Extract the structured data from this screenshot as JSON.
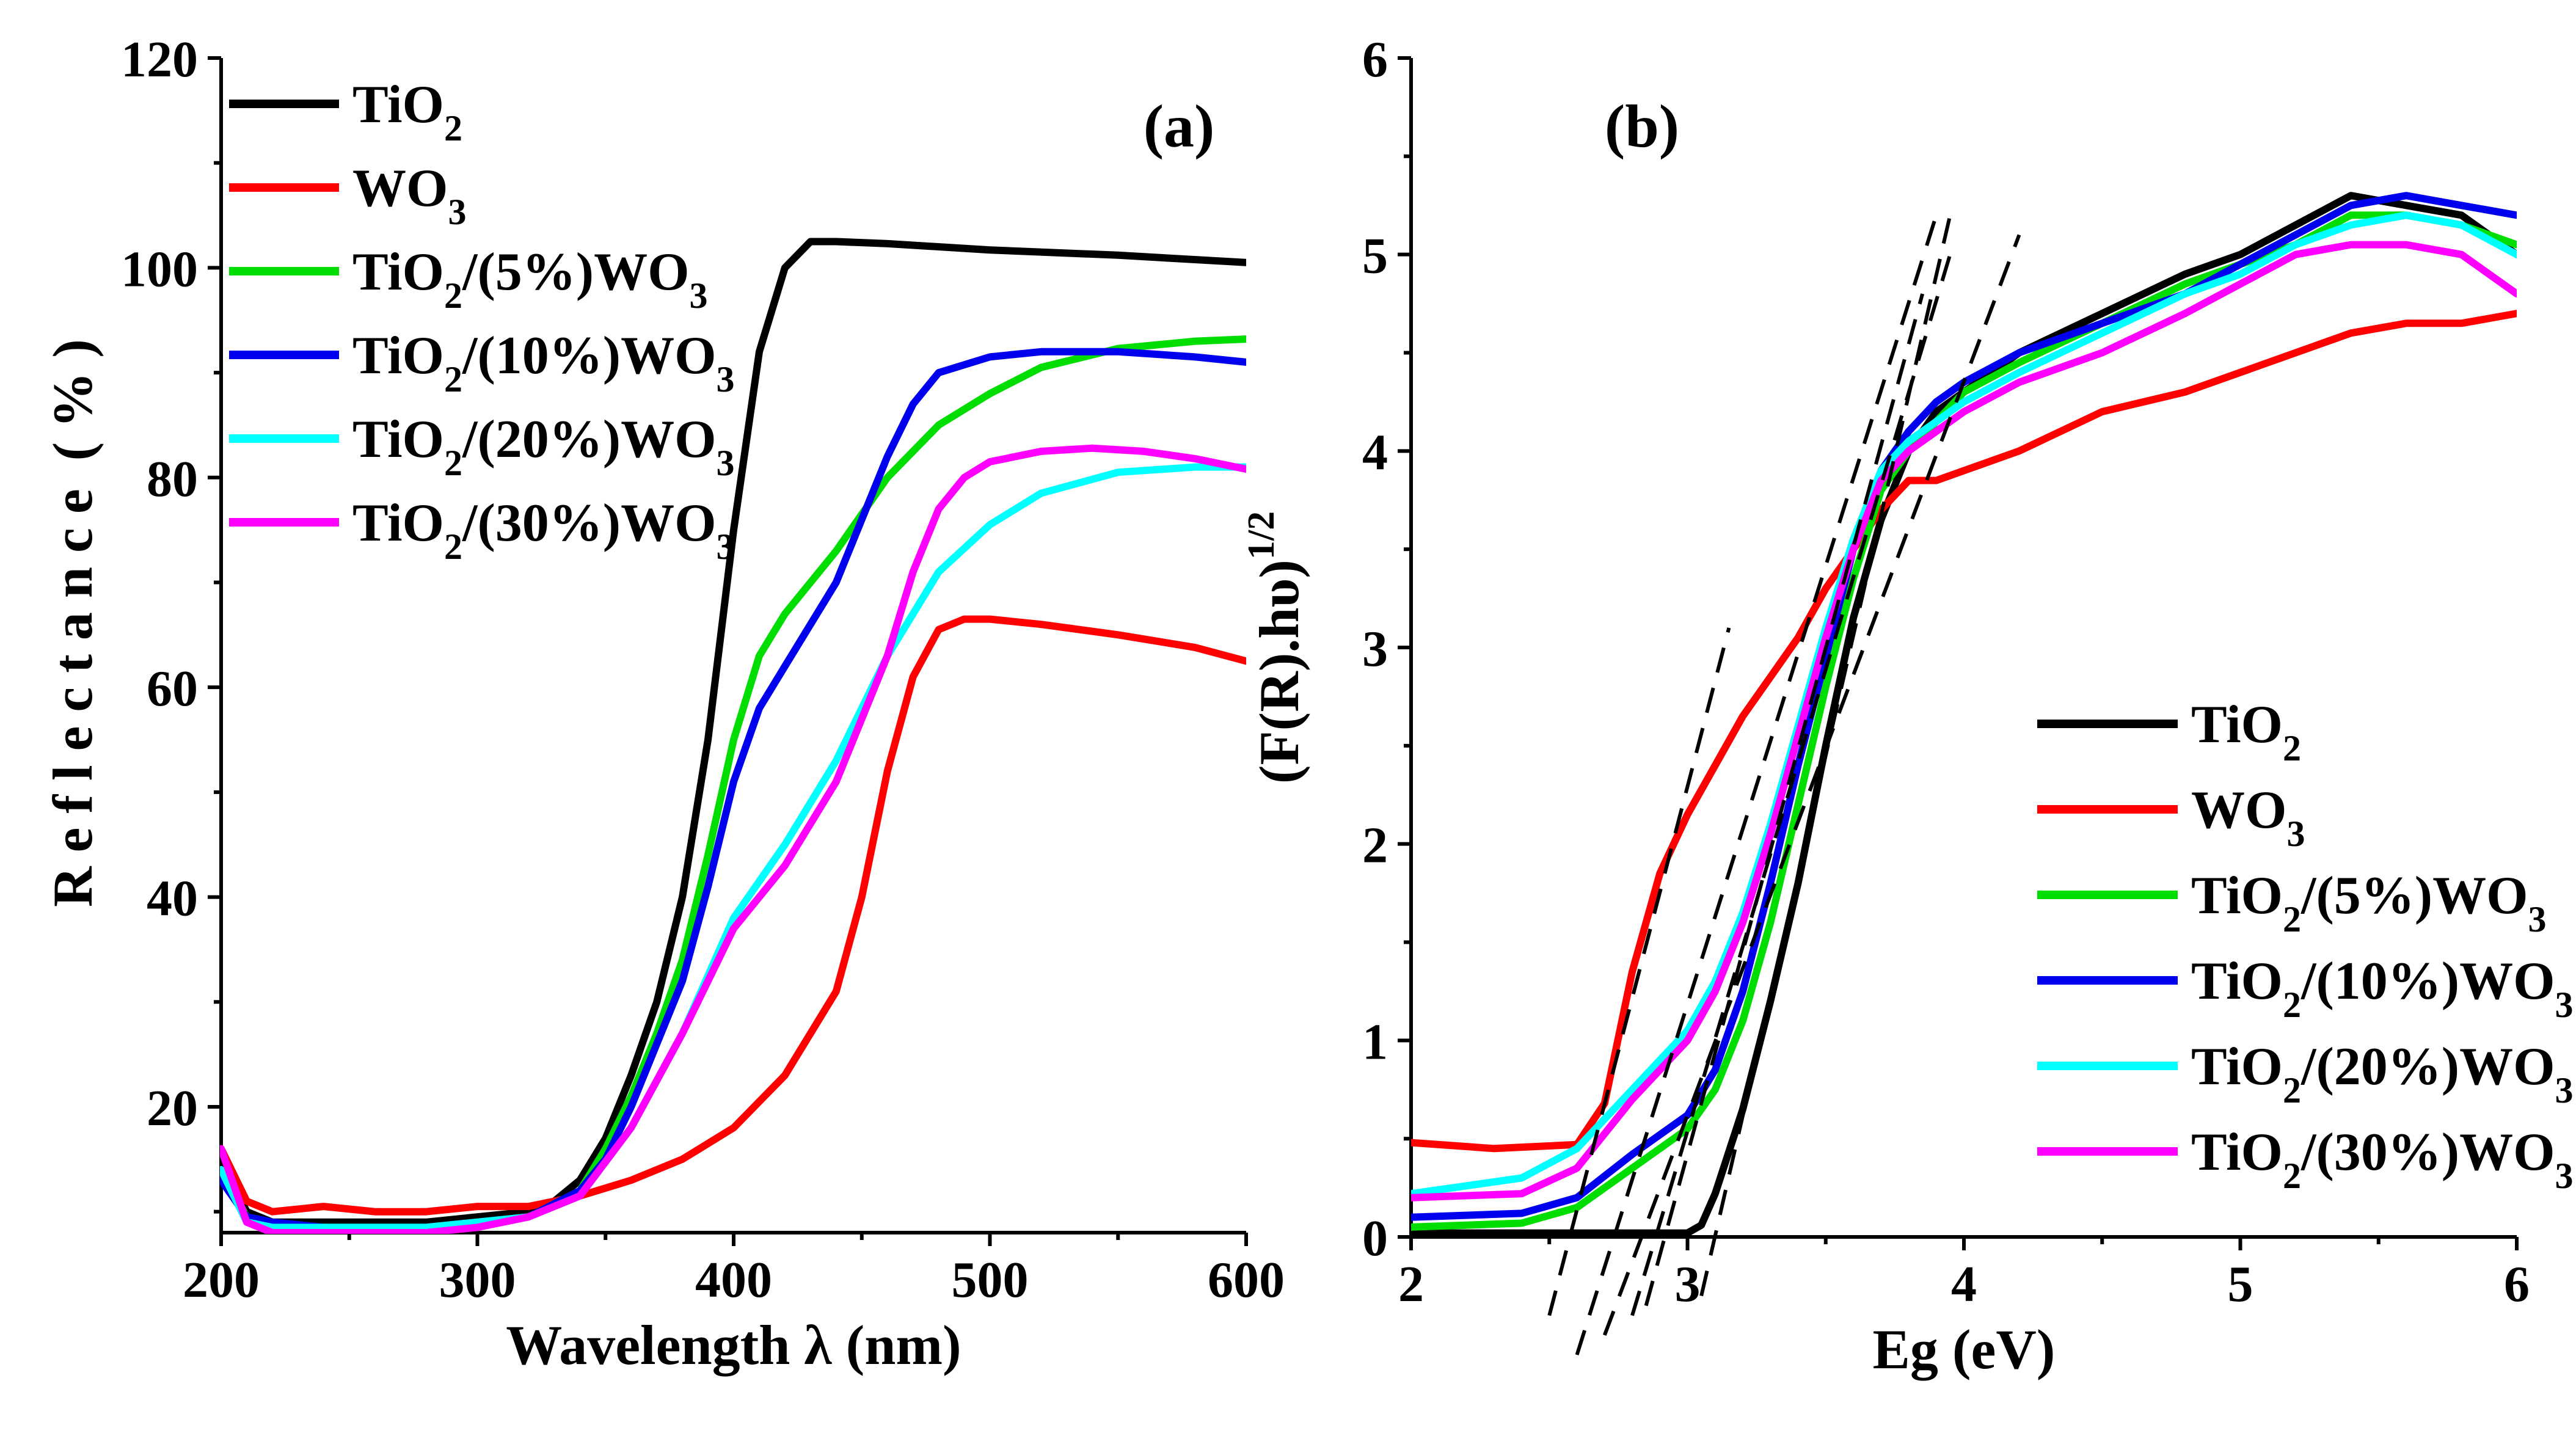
{
  "colors": {
    "TiO2": "#000000",
    "WO3": "#ff0000",
    "TiO2_5": "#00dd00",
    "TiO2_10": "#0000ee",
    "TiO2_20": "#00ffff",
    "TiO2_30": "#ff00ff"
  },
  "legend": [
    {
      "key": "TiO2",
      "base": "TiO",
      "parts": [
        [
          "2",
          "sub"
        ]
      ]
    },
    {
      "key": "WO3",
      "base": "WO",
      "parts": [
        [
          "3",
          "sub"
        ]
      ]
    },
    {
      "key": "TiO2_5",
      "base": "TiO",
      "parts": [
        [
          "2",
          "sub"
        ],
        [
          "/(5%)WO",
          "n"
        ],
        [
          "3",
          "sub"
        ]
      ]
    },
    {
      "key": "TiO2_10",
      "base": "TiO",
      "parts": [
        [
          "2",
          "sub"
        ],
        [
          "/(10%)WO",
          "n"
        ],
        [
          "3",
          "sub"
        ]
      ]
    },
    {
      "key": "TiO2_20",
      "base": "TiO",
      "parts": [
        [
          "2",
          "sub"
        ],
        [
          "/(20%)WO",
          "n"
        ],
        [
          "3",
          "sub"
        ]
      ]
    },
    {
      "key": "TiO2_30",
      "base": "TiO",
      "parts": [
        [
          "2",
          "sub"
        ],
        [
          "/(30%)WO",
          "n"
        ],
        [
          "3",
          "sub"
        ]
      ]
    }
  ],
  "chart_data": [
    {
      "panel": "(a)",
      "type": "line",
      "xlabel": "Wavelength λ (nm)",
      "ylabel": "R e f l e c t a n c e  ( % )",
      "xlim": [
        200,
        600
      ],
      "ylim": [
        8,
        120
      ],
      "xticks": [
        200,
        300,
        400,
        500,
        600
      ],
      "yticks": [
        20,
        40,
        60,
        80,
        100,
        120
      ],
      "legend_position": "top-left",
      "series": [
        {
          "name": "TiO2",
          "x": [
            200,
            210,
            220,
            240,
            260,
            280,
            300,
            320,
            330,
            340,
            350,
            360,
            370,
            380,
            390,
            400,
            410,
            420,
            430,
            440,
            460,
            500,
            550,
            600
          ],
          "y": [
            15,
            10,
            9,
            9,
            9,
            9,
            9.5,
            10,
            11,
            13,
            17,
            23,
            30,
            40,
            55,
            75,
            92,
            100,
            102.5,
            102.5,
            102.3,
            101.7,
            101.2,
            100.5
          ]
        },
        {
          "name": "WO3",
          "x": [
            200,
            210,
            220,
            240,
            260,
            280,
            300,
            320,
            330,
            340,
            360,
            380,
            400,
            420,
            440,
            450,
            460,
            470,
            480,
            490,
            500,
            520,
            550,
            580,
            600
          ],
          "y": [
            16,
            11,
            10,
            10.5,
            10,
            10,
            10.5,
            10.5,
            11,
            11.5,
            13,
            15,
            18,
            23,
            31,
            40,
            52,
            61,
            65.5,
            66.5,
            66.5,
            66,
            65,
            63.8,
            62.5
          ]
        },
        {
          "name": "TiO2/(5%)WO3",
          "x": [
            200,
            210,
            220,
            240,
            260,
            280,
            300,
            320,
            340,
            350,
            360,
            370,
            380,
            390,
            400,
            410,
            420,
            440,
            460,
            480,
            500,
            520,
            550,
            580,
            600
          ],
          "y": [
            14,
            9.5,
            9,
            8.5,
            8.5,
            8.5,
            9,
            9.5,
            12,
            16,
            21,
            27,
            34,
            44,
            55,
            63,
            67,
            73,
            80,
            85,
            88,
            90.5,
            92.3,
            93,
            93.2
          ]
        },
        {
          "name": "TiO2/(10%)WO3",
          "x": [
            200,
            210,
            220,
            240,
            260,
            280,
            300,
            320,
            340,
            350,
            360,
            370,
            380,
            390,
            400,
            410,
            420,
            440,
            460,
            470,
            480,
            500,
            520,
            550,
            580,
            600
          ],
          "y": [
            13,
            9.5,
            9,
            8.5,
            8.5,
            8.5,
            9,
            9.5,
            12,
            15,
            20,
            26,
            32,
            41,
            51,
            58,
            62,
            70,
            82,
            87,
            90,
            91.5,
            92,
            92,
            91.5,
            91
          ]
        },
        {
          "name": "TiO2/(20%)WO3",
          "x": [
            200,
            210,
            220,
            240,
            260,
            280,
            300,
            320,
            340,
            360,
            380,
            400,
            420,
            440,
            460,
            480,
            500,
            520,
            550,
            580,
            600
          ],
          "y": [
            14,
            9,
            8.5,
            8.5,
            8.5,
            8.5,
            9,
            9.5,
            11.5,
            18,
            27,
            38,
            45,
            53,
            63,
            71,
            75.5,
            78.5,
            80.5,
            81,
            81
          ]
        },
        {
          "name": "TiO2/(30%)WO3",
          "x": [
            200,
            210,
            220,
            240,
            260,
            280,
            300,
            320,
            340,
            360,
            380,
            400,
            420,
            440,
            460,
            470,
            480,
            490,
            500,
            520,
            540,
            560,
            580,
            600
          ],
          "y": [
            16,
            9,
            8,
            8,
            8,
            8,
            8.5,
            9.5,
            11.5,
            18,
            27,
            37,
            43,
            51,
            63,
            71,
            77,
            80,
            81.5,
            82.5,
            82.8,
            82.5,
            81.8,
            80.8
          ]
        }
      ]
    },
    {
      "panel": "(b)",
      "type": "line",
      "xlabel": "Eg (eV)",
      "ylabel_main": "(F(R).hυ)",
      "ylabel_sup": "1/2",
      "xlim": [
        2,
        6
      ],
      "ylim": [
        0,
        6
      ],
      "xticks": [
        2,
        3,
        4,
        5,
        6
      ],
      "yticks": [
        0,
        1,
        2,
        3,
        4,
        5,
        6
      ],
      "legend_position": "bottom-right",
      "series": [
        {
          "name": "TiO2",
          "x": [
            2,
            2.5,
            2.9,
            3.0,
            3.05,
            3.1,
            3.2,
            3.3,
            3.4,
            3.5,
            3.6,
            3.7,
            3.8,
            3.9,
            4.0,
            4.2,
            4.5,
            4.8,
            5.0,
            5.2,
            5.4,
            5.6,
            5.8,
            6.0
          ],
          "y": [
            0.02,
            0.02,
            0.02,
            0.02,
            0.06,
            0.22,
            0.65,
            1.2,
            1.8,
            2.5,
            3.15,
            3.65,
            4.0,
            4.2,
            4.3,
            4.5,
            4.7,
            4.9,
            5.0,
            5.15,
            5.3,
            5.25,
            5.2,
            5.0
          ]
        },
        {
          "name": "WO3",
          "x": [
            2,
            2.3,
            2.6,
            2.7,
            2.8,
            2.9,
            3.0,
            3.1,
            3.2,
            3.3,
            3.4,
            3.5,
            3.6,
            3.7,
            3.8,
            3.9,
            4.0,
            4.2,
            4.5,
            4.8,
            5.0,
            5.2,
            5.4,
            5.6,
            5.8,
            6.0
          ],
          "y": [
            0.48,
            0.45,
            0.47,
            0.68,
            1.35,
            1.85,
            2.15,
            2.4,
            2.65,
            2.85,
            3.05,
            3.3,
            3.5,
            3.7,
            3.85,
            3.85,
            3.9,
            4.0,
            4.2,
            4.3,
            4.4,
            4.5,
            4.6,
            4.65,
            4.65,
            4.7
          ]
        },
        {
          "name": "TiO2/(5%)WO3",
          "x": [
            2,
            2.4,
            2.6,
            2.8,
            3.0,
            3.1,
            3.2,
            3.3,
            3.4,
            3.5,
            3.6,
            3.7,
            3.8,
            3.9,
            4.0,
            4.2,
            4.5,
            4.8,
            5.0,
            5.2,
            5.4,
            5.6,
            5.8,
            6.0
          ],
          "y": [
            0.05,
            0.07,
            0.15,
            0.35,
            0.55,
            0.75,
            1.1,
            1.6,
            2.2,
            2.8,
            3.35,
            3.8,
            4.0,
            4.15,
            4.3,
            4.45,
            4.65,
            4.85,
            4.95,
            5.05,
            5.2,
            5.2,
            5.15,
            5.05
          ]
        },
        {
          "name": "TiO2/(10%)WO3",
          "x": [
            2,
            2.4,
            2.6,
            2.8,
            3.0,
            3.1,
            3.2,
            3.3,
            3.4,
            3.5,
            3.6,
            3.7,
            3.8,
            3.9,
            4.0,
            4.2,
            4.5,
            4.8,
            5.0,
            5.2,
            5.4,
            5.6,
            5.8,
            6.0
          ],
          "y": [
            0.1,
            0.12,
            0.2,
            0.42,
            0.62,
            0.85,
            1.25,
            1.8,
            2.4,
            2.95,
            3.5,
            3.9,
            4.1,
            4.25,
            4.35,
            4.5,
            4.65,
            4.8,
            4.95,
            5.1,
            5.25,
            5.3,
            5.25,
            5.2
          ]
        },
        {
          "name": "TiO2/(20%)WO3",
          "x": [
            2,
            2.4,
            2.6,
            2.8,
            3.0,
            3.1,
            3.2,
            3.3,
            3.4,
            3.5,
            3.6,
            3.7,
            3.8,
            3.9,
            4.0,
            4.2,
            4.5,
            4.8,
            5.0,
            5.2,
            5.4,
            5.6,
            5.8,
            6.0
          ],
          "y": [
            0.22,
            0.3,
            0.45,
            0.75,
            1.05,
            1.3,
            1.65,
            2.1,
            2.6,
            3.1,
            3.55,
            3.9,
            4.05,
            4.15,
            4.25,
            4.4,
            4.6,
            4.8,
            4.9,
            5.05,
            5.15,
            5.2,
            5.15,
            5.0
          ]
        },
        {
          "name": "TiO2/(30%)WO3",
          "x": [
            2,
            2.4,
            2.6,
            2.8,
            3.0,
            3.1,
            3.2,
            3.3,
            3.4,
            3.5,
            3.6,
            3.7,
            3.8,
            3.9,
            4.0,
            4.2,
            4.5,
            4.8,
            5.0,
            5.2,
            5.4,
            5.6,
            5.8,
            6.0
          ],
          "y": [
            0.2,
            0.22,
            0.35,
            0.7,
            1.0,
            1.25,
            1.6,
            2.05,
            2.55,
            3.05,
            3.5,
            3.85,
            4.0,
            4.1,
            4.2,
            4.35,
            4.5,
            4.7,
            4.85,
            5.0,
            5.05,
            5.05,
            5.0,
            4.8
          ]
        }
      ],
      "tangent_lines": [
        {
          "x": [
            2.5,
            3.15
          ],
          "y": [
            -0.4,
            3.1
          ]
        },
        {
          "x": [
            2.6,
            3.9
          ],
          "y": [
            -0.6,
            5.2
          ]
        },
        {
          "x": [
            2.7,
            4.2
          ],
          "y": [
            -0.5,
            5.1
          ]
        },
        {
          "x": [
            2.8,
            3.95
          ],
          "y": [
            -0.4,
            5.0
          ]
        },
        {
          "x": [
            2.85,
            3.85
          ],
          "y": [
            -0.35,
            4.8
          ]
        },
        {
          "x": [
            3.05,
            3.95
          ],
          "y": [
            -0.3,
            5.2
          ]
        }
      ]
    }
  ]
}
